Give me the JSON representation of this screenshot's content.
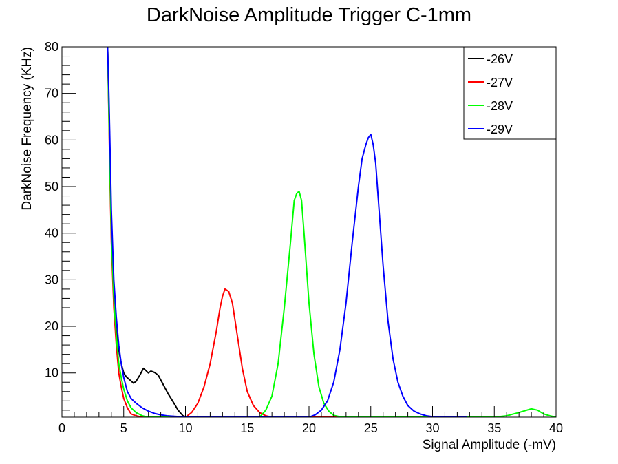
{
  "chart_data": {
    "type": "line",
    "title": "DarkNoise Amplitude Trigger C-1mm",
    "xlabel": "Signal Amplitude (-mV)",
    "ylabel": "DarkNoise Frequency (KHz)",
    "xlim": [
      0,
      40
    ],
    "ylim": [
      0.5,
      80
    ],
    "x_ticks": [
      0,
      5,
      10,
      15,
      20,
      25,
      30,
      35,
      40
    ],
    "y_ticks": [
      10,
      20,
      30,
      40,
      50,
      60,
      70,
      80
    ],
    "legend_position": "top-right",
    "grid": false,
    "series": [
      {
        "name": "-26V",
        "color": "#000000",
        "x": [
          3.7,
          3.8,
          3.9,
          4.0,
          4.2,
          4.4,
          4.6,
          4.8,
          5.0,
          5.2,
          5.5,
          5.8,
          6.0,
          6.3,
          6.6,
          6.8,
          7.0,
          7.2,
          7.5,
          7.8,
          8.0,
          8.3,
          8.6,
          9.0,
          9.4,
          9.8,
          10.1
        ],
        "y": [
          80,
          68,
          55,
          42,
          28,
          20,
          15,
          12,
          10,
          9.2,
          8.5,
          7.8,
          8.2,
          9.5,
          11,
          10.5,
          10,
          10.4,
          10.1,
          9.5,
          8.5,
          7,
          5.5,
          3.8,
          2,
          0.8,
          0.5
        ]
      },
      {
        "name": "-27V",
        "color": "#ff0000",
        "x": [
          3.7,
          3.8,
          3.9,
          4.0,
          4.2,
          4.4,
          4.6,
          4.8,
          5.0,
          5.3,
          5.6,
          6.0,
          6.5,
          10.0,
          10.5,
          11.0,
          11.5,
          12.0,
          12.5,
          12.8,
          13.0,
          13.2,
          13.5,
          13.8,
          14.2,
          14.6,
          15.0,
          15.5,
          16.0,
          16.5,
          17.0,
          27.5,
          28.5,
          29.0
        ],
        "y": [
          80,
          65,
          50,
          38,
          24,
          16,
          10,
          7,
          4.5,
          2.5,
          1.2,
          0.8,
          0.5,
          0.5,
          1.5,
          3.5,
          7,
          12,
          19,
          24,
          26.5,
          28,
          27.5,
          25,
          18,
          11,
          6,
          3,
          1.5,
          0.8,
          0.5,
          0.5,
          0.6,
          0.5
        ]
      },
      {
        "name": "-28V",
        "color": "#00ff00",
        "x": [
          3.7,
          3.8,
          3.9,
          4.0,
          4.2,
          4.4,
          4.6,
          4.8,
          5.0,
          5.3,
          5.6,
          6.0,
          6.5,
          7.0,
          16.0,
          16.5,
          17.0,
          17.5,
          18.0,
          18.5,
          18.8,
          19.0,
          19.2,
          19.4,
          19.6,
          20.0,
          20.4,
          20.8,
          21.2,
          21.6,
          22.0,
          22.5,
          23.0,
          35.0,
          36.0,
          37.0,
          38.0,
          38.5,
          39.0,
          39.5,
          40.0
        ],
        "y": [
          80,
          66,
          52,
          40,
          26,
          18,
          12,
          9,
          6.5,
          4,
          2.5,
          1.5,
          0.8,
          0.5,
          0.5,
          2,
          5,
          12,
          24,
          38,
          47,
          48.5,
          49,
          47,
          40,
          25,
          14,
          7,
          3.5,
          1.8,
          0.9,
          0.6,
          0.5,
          0.5,
          0.8,
          1.5,
          2.3,
          2,
          1.2,
          0.8,
          0.5
        ]
      },
      {
        "name": "-29V",
        "color": "#0000ff",
        "x": [
          3.7,
          3.8,
          3.9,
          4.0,
          4.2,
          4.4,
          4.6,
          4.8,
          5.0,
          5.3,
          5.6,
          6.0,
          6.5,
          7.0,
          7.5,
          8.0,
          8.5,
          9.0,
          9.5,
          10.0,
          20.0,
          20.5,
          21.0,
          21.5,
          22.0,
          22.5,
          23.0,
          23.5,
          24.0,
          24.3,
          24.6,
          24.8,
          25.0,
          25.2,
          25.4,
          25.7,
          26.0,
          26.4,
          26.8,
          27.2,
          27.6,
          28.0,
          28.5,
          29.0,
          29.5,
          30.0,
          31.0,
          32.0,
          32.8
        ],
        "y": [
          80,
          70,
          58,
          45,
          30,
          22,
          16,
          12,
          9,
          6,
          4.5,
          3.5,
          2.5,
          1.8,
          1.3,
          1.0,
          0.8,
          0.7,
          0.6,
          0.5,
          0.5,
          1,
          2,
          4,
          8,
          15,
          25,
          38,
          50,
          56,
          59,
          60.5,
          61.2,
          59,
          55,
          44,
          33,
          21,
          13,
          8,
          5,
          3,
          1.8,
          1.2,
          0.8,
          0.6,
          0.6,
          0.5,
          0.5
        ]
      }
    ]
  }
}
